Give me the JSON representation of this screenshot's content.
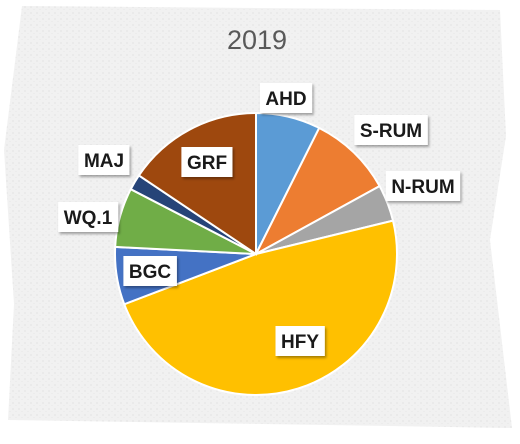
{
  "chart_data": {
    "type": "pie",
    "title": "2019",
    "categories": [
      "AHD",
      "S-RUM",
      "N-RUM",
      "HFY",
      "BGC",
      "WQ.1",
      "MAJ",
      "GRF"
    ],
    "values": [
      7.4,
      9.6,
      4.2,
      48.0,
      6.6,
      6.8,
      1.8,
      15.6
    ],
    "unit": "percent (estimated)",
    "colors": [
      "#5B9BD5",
      "#ED7D31",
      "#A5A5A5",
      "#FFC000",
      "#4472C4",
      "#70AD47",
      "#264478",
      "#9E480E"
    ],
    "legend": "none (data labels on chart)",
    "start": "12 o'clock, clockwise"
  }
}
